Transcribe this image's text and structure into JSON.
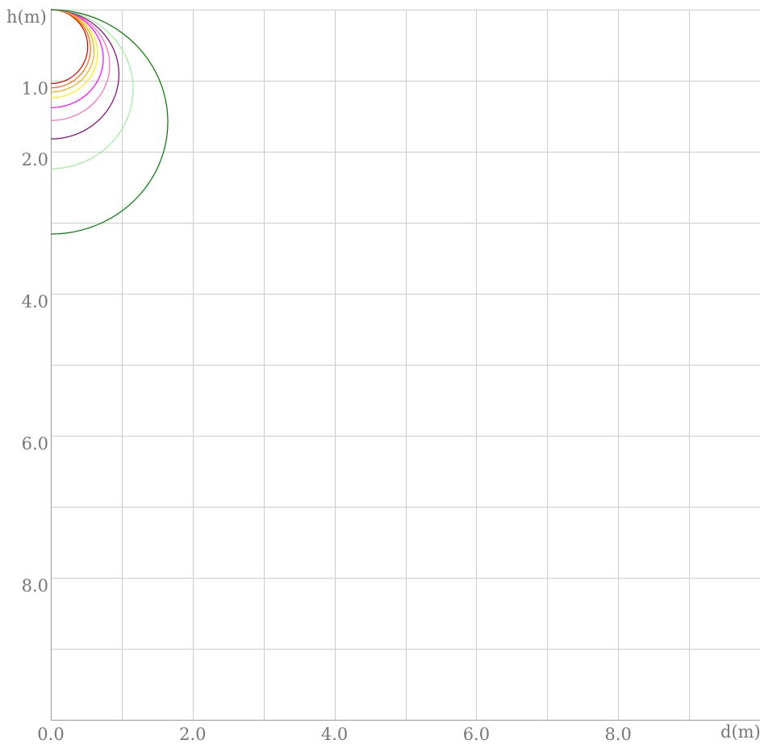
{
  "chart_data": {
    "type": "line",
    "title": "",
    "xlabel": "d(m)",
    "ylabel": "h(m)",
    "xlim": [
      0,
      10
    ],
    "ylim": [
      0,
      10
    ],
    "y_inverted": true,
    "grid": true,
    "x_grid_step": 1,
    "y_grid_step": 1,
    "x_ticks": [
      {
        "value": 0,
        "label": "0.0"
      },
      {
        "value": 2,
        "label": "2.0"
      },
      {
        "value": 4,
        "label": "4.0"
      },
      {
        "value": 6,
        "label": "6.0"
      },
      {
        "value": 8,
        "label": "8.0"
      }
    ],
    "y_ticks": [
      {
        "value": 1,
        "label": "1.0"
      },
      {
        "value": 2,
        "label": "2.0"
      },
      {
        "value": 4,
        "label": "4.0"
      },
      {
        "value": 6,
        "label": "6.0"
      },
      {
        "value": 8,
        "label": "8.0"
      }
    ],
    "series": [
      {
        "color": "#cc0000",
        "center_h": 0.52,
        "radius": 0.52
      },
      {
        "color": "#ff6600",
        "center_h": 0.55,
        "radius": 0.56
      },
      {
        "color": "#ffaa00",
        "center_h": 0.58,
        "radius": 0.61
      },
      {
        "color": "#ffee00",
        "center_h": 0.62,
        "radius": 0.66
      },
      {
        "color": "#ff00ff",
        "center_h": 0.69,
        "radius": 0.74
      },
      {
        "color": "#ff66bb",
        "center_h": 0.78,
        "radius": 0.83
      },
      {
        "color": "#800080",
        "center_h": 0.91,
        "radius": 0.96
      },
      {
        "color": "#99ee99",
        "center_h": 1.12,
        "radius": 1.16
      },
      {
        "color": "#007700",
        "center_h": 1.58,
        "radius": 1.65
      }
    ]
  }
}
